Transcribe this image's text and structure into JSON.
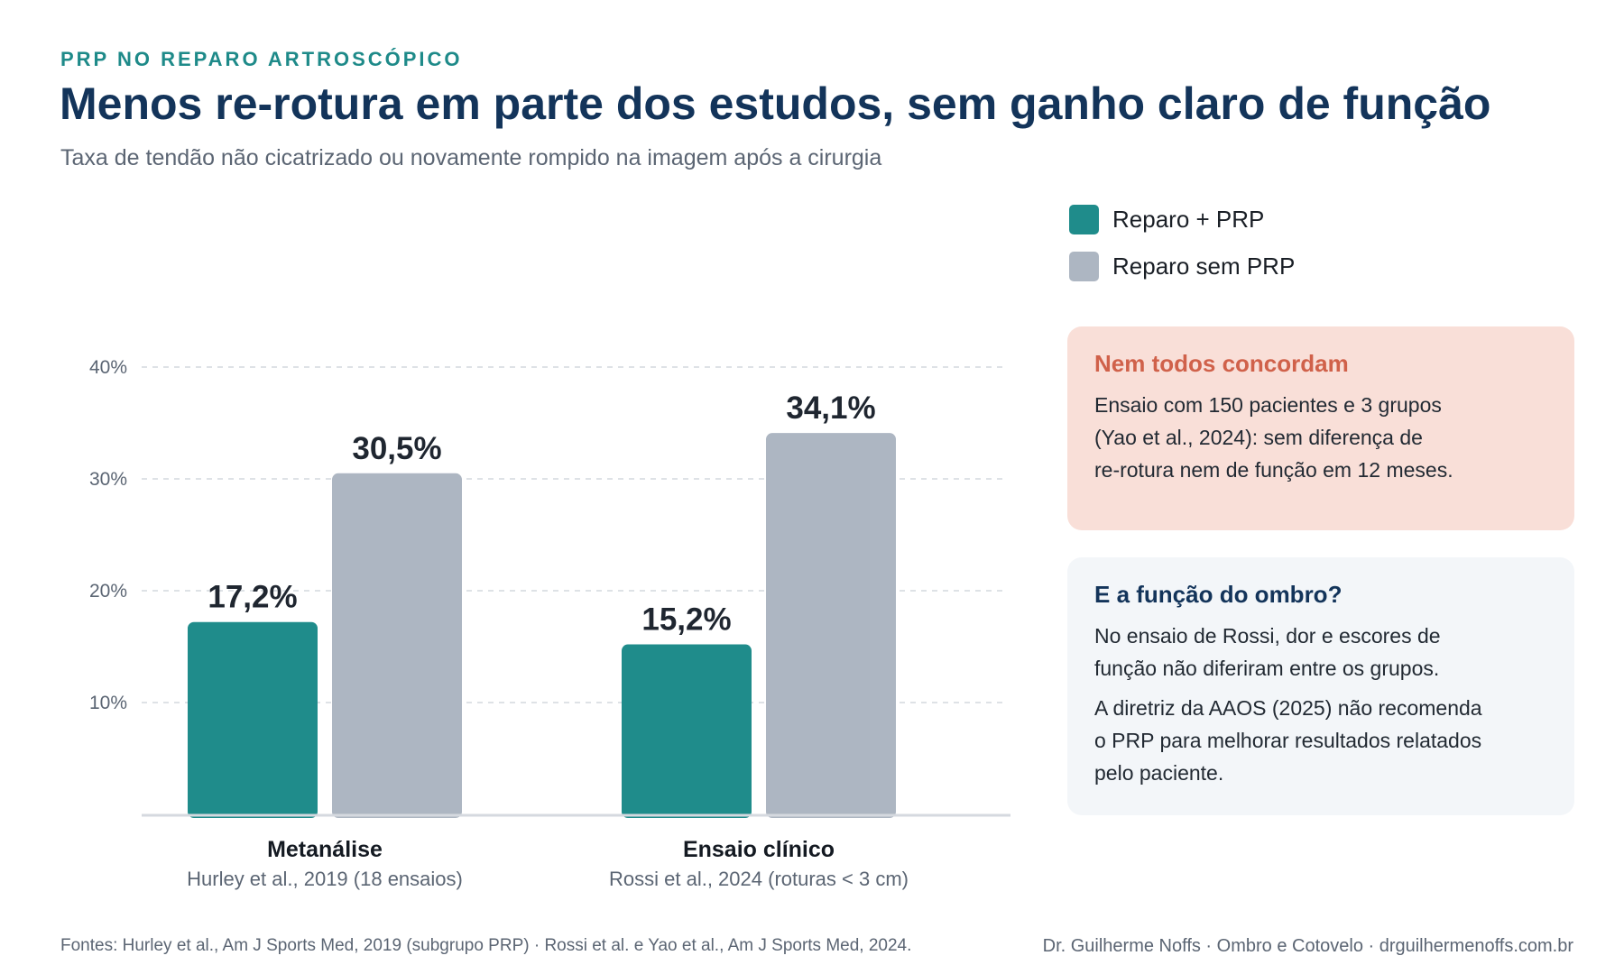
{
  "header": {
    "eyebrow": "PRP NO REPARO ARTROSCÓPICO",
    "title": "Menos re-rotura em parte dos estudos, sem ganho claro de função",
    "subtitle": "Taxa de tendão não cicatrizado ou novamente rompido na imagem após a cirurgia"
  },
  "legend": [
    {
      "label": "Reparo + PRP",
      "color": "#1f8c8b"
    },
    {
      "label": "Reparo sem PRP",
      "color": "#adb6c2"
    }
  ],
  "chart_data": {
    "type": "bar",
    "categories": [
      "Metanálise",
      "Ensaio clínico"
    ],
    "category_sublabels": [
      "Hurley et al., 2019 (18 ensaios)",
      "Rossi et al., 2024 (roturas < 3 cm)"
    ],
    "series": [
      {
        "name": "Reparo + PRP",
        "values": [
          17.2,
          15.2
        ],
        "labels": [
          "17,2%",
          "15,2%"
        ],
        "color": "#1f8c8b"
      },
      {
        "name": "Reparo sem PRP",
        "values": [
          30.5,
          34.1
        ],
        "labels": [
          "30,5%",
          "34,1%"
        ],
        "color": "#adb6c2"
      }
    ],
    "yticks": [
      10,
      20,
      30,
      40
    ],
    "ytick_labels": [
      "10%",
      "20%",
      "30%",
      "40%"
    ],
    "ylim": [
      0,
      40
    ],
    "grid": true,
    "legend_position": "top-right"
  },
  "callouts": {
    "warn": {
      "title": "Nem todos concordam",
      "paragraphs": [
        "Ensaio com 150 pacientes e 3 grupos\n(Yao et al., 2024): sem diferença de\nre-rotura nem de função em 12 meses."
      ]
    },
    "info": {
      "title": "E a função do ombro?",
      "p1": "No ensaio de Rossi, dor e escores de\nfunção não diferiram entre os grupos.",
      "p2": "A diretriz da AAOS (2025) não recomenda\no PRP para melhorar resultados relatados\npelo paciente."
    }
  },
  "footer": {
    "sources": "Fontes: Hurley et al., Am J Sports Med, 2019 (subgrupo PRP) · Rossi et al. e Yao et al., Am J Sports Med, 2024.",
    "credit": "Dr. Guilherme Noffs · Ombro e Cotovelo · drguilhermenoffs.com.br"
  }
}
